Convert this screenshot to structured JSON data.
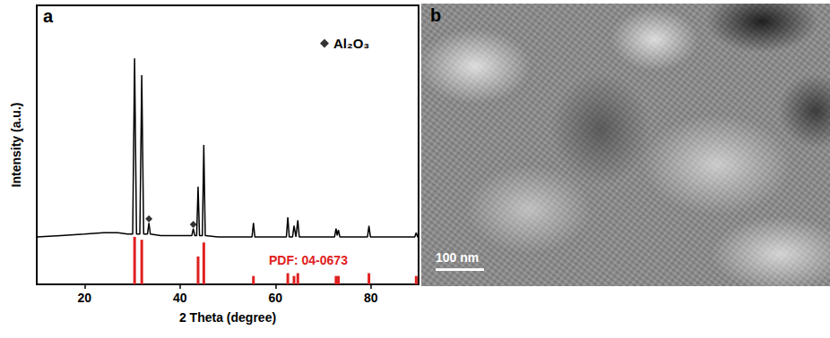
{
  "chart_data": {
    "type": "line",
    "panel_label": "a",
    "x_label": "2 Theta (degree)",
    "y_label": "Intensity (a.u.)",
    "x": [
      10,
      15,
      20,
      24,
      27,
      29,
      30.1,
      30.5,
      30.9,
      31.6,
      32.0,
      32.4,
      33.2,
      33.5,
      33.8,
      36,
      40,
      42.5,
      42.8,
      43.1,
      43.5,
      43.8,
      44.1,
      44.7,
      45.0,
      45.3,
      48,
      52,
      55.1,
      55.4,
      55.7,
      59,
      62.3,
      62.6,
      62.9,
      63.6,
      63.9,
      64.3,
      64.7,
      65.0,
      68,
      72.4,
      72.7,
      72.95,
      73.2,
      73.5,
      76,
      79.3,
      79.6,
      79.9,
      84,
      89.2,
      89.5,
      89.8,
      90
    ],
    "values": [
      17,
      17.5,
      18,
      18.5,
      18.5,
      18,
      18,
      81,
      18,
      18,
      75,
      18,
      18,
      22,
      18,
      17.5,
      17.5,
      17.5,
      20,
      17.5,
      17.5,
      35,
      17.5,
      17.5,
      50,
      17.5,
      17,
      17,
      17,
      22,
      17,
      17,
      17,
      24,
      17,
      17,
      21,
      17,
      23,
      17,
      17,
      17,
      20,
      17.5,
      19.5,
      17,
      17,
      17,
      21,
      17,
      17,
      17,
      18.5,
      17,
      17
    ],
    "color": "#000000",
    "reference": {
      "type": "bar",
      "label": "PDF: 04-0673",
      "color": "#e02020",
      "x": [
        30.5,
        32.0,
        43.8,
        45.0,
        55.4,
        62.6,
        63.9,
        64.7,
        72.7,
        73.2,
        79.6,
        89.5
      ],
      "values": [
        17,
        16,
        10,
        15,
        3,
        4,
        3,
        4,
        3,
        3,
        4,
        3
      ]
    },
    "series": [
      {
        "name": "Al₂O₃",
        "type": "scatter",
        "marker": "diamond",
        "color": "#000000",
        "x": [
          33.5,
          42.8
        ],
        "values": [
          23.5,
          21.5
        ]
      }
    ],
    "legend": "upper right",
    "xlim": [
      10,
      90
    ],
    "xticks": [
      20,
      40,
      60,
      80
    ],
    "ylim": [
      0,
      100
    ],
    "tick_labels": "x",
    "grid": false
  },
  "image": {
    "panel_label": "b",
    "scale_bar": "100 nm"
  }
}
